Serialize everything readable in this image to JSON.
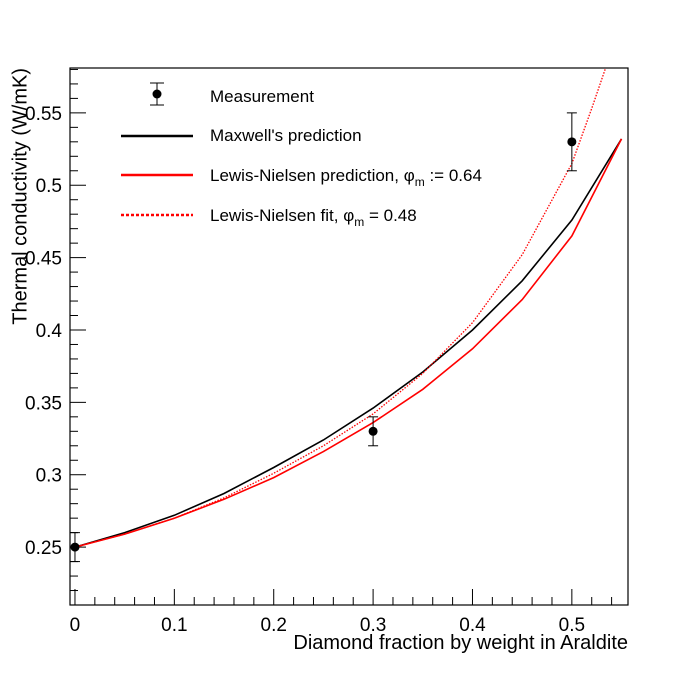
{
  "chart_data": {
    "type": "line",
    "title": "",
    "xlabel": "Diamond fraction by weight in Araldite",
    "ylabel": "Thermal conductivity (W/mK)",
    "xlim": [
      -0.005,
      0.5565
    ],
    "ylim": [
      0.21,
      0.581
    ],
    "grid": false,
    "legend_position": "top-left",
    "x_ticks": [
      "0",
      "0.1",
      "0.2",
      "0.3",
      "0.4",
      "0.5"
    ],
    "y_ticks": [
      "0.25",
      "0.3",
      "0.35",
      "0.4",
      "0.45",
      "0.5",
      "0.55"
    ],
    "measurement": {
      "name": "Measurement",
      "x": [
        0,
        0.3,
        0.5
      ],
      "y": [
        0.25,
        0.33,
        0.53
      ],
      "yerr": [
        0.01,
        0.01,
        0.02
      ]
    },
    "series": [
      {
        "name": "Maxwell's prediction",
        "style": "solid",
        "color": "#000000",
        "x": [
          0,
          0.05,
          0.1,
          0.15,
          0.2,
          0.25,
          0.3,
          0.35,
          0.4,
          0.45,
          0.5,
          0.55
        ],
        "y": [
          0.25,
          0.26,
          0.272,
          0.287,
          0.305,
          0.324,
          0.346,
          0.371,
          0.4,
          0.434,
          0.476,
          0.532
        ]
      },
      {
        "name": "Lewis-Nielsen prediction",
        "phi_label": "m",
        "phi_value": ":= 0.64",
        "style": "solid",
        "color": "#ff0000",
        "x": [
          0,
          0.05,
          0.1,
          0.15,
          0.2,
          0.25,
          0.3,
          0.35,
          0.4,
          0.45,
          0.5,
          0.55
        ],
        "y": [
          0.25,
          0.259,
          0.27,
          0.283,
          0.298,
          0.316,
          0.336,
          0.359,
          0.387,
          0.421,
          0.465,
          0.532
        ]
      },
      {
        "name": "Lewis-Nielsen fit",
        "phi_label": "m",
        "phi_value": "= 0.48",
        "style": "dotted",
        "color": "#ff0000",
        "x": [
          0,
          0.05,
          0.1,
          0.15,
          0.2,
          0.25,
          0.3,
          0.35,
          0.4,
          0.45,
          0.5,
          0.52,
          0.534
        ],
        "y": [
          0.25,
          0.259,
          0.27,
          0.284,
          0.301,
          0.32,
          0.342,
          0.37,
          0.405,
          0.452,
          0.515,
          0.553,
          0.581
        ]
      }
    ]
  },
  "legend": {
    "measurement": "Measurement",
    "maxwell": "Maxwell's prediction",
    "ln_pred": "Lewis-Nielsen prediction, ",
    "ln_fit": "Lewis-Nielsen fit, ",
    "phi": "φ",
    "sub_m": "m",
    "ln_pred_val": " := 0.64",
    "ln_fit_val": " = 0.48"
  }
}
